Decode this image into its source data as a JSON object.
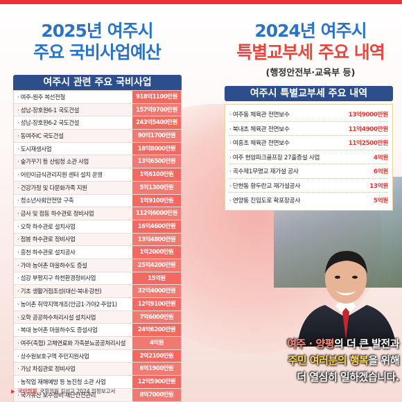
{
  "left_title": {
    "line1": "2025년 여주시",
    "line2": "주요 국비사업예산"
  },
  "right_title": {
    "line1": "2024년 여주시",
    "line2": "특별교부세 주요 내역",
    "sub": "(행정안전부·교육부 등)"
  },
  "left_table": {
    "header": "여주시 관련 주요 국비사업",
    "rows": [
      {
        "name": "여주-원주 복선전철",
        "amount": "918억1100만원"
      },
      {
        "name": "성남-장호원6-1 국도건설",
        "amount": "157억9700만원"
      },
      {
        "name": "성남-장호원6-2 국도건설",
        "amount": "243억5400만원"
      },
      {
        "name": "동여주IC 국도건설",
        "amount": "90억1700만원"
      },
      {
        "name": "도시재생사업",
        "amount": "18억8000만원"
      },
      {
        "name": "숲가꾸기 등 산림청 소관 사업",
        "amount": "13억6500만원"
      },
      {
        "name": "어린이급식관리지원 센터 설치 운영",
        "amount": "1억6100만원"
      },
      {
        "name": "건강가정 및 다문화가족 지원",
        "amount": "5억1300만원"
      },
      {
        "name": "청소년사회안전망 구축",
        "amount": "1억9100만원"
      },
      {
        "name": "금사 및 점동 하수관로 정비사업",
        "amount": "112억6000만원"
      },
      {
        "name": "오학 하수관로 설치사업",
        "amount": "16억4600만원"
      },
      {
        "name": "점봉 하수관로 정비사업",
        "amount": "13억4800만원"
      },
      {
        "name": "흥천 하수관로 설치공사",
        "amount": "1억2000만원"
      },
      {
        "name": "가야 농어촌 마을하수도 증설",
        "amount": "25억4200만원"
      },
      {
        "name": "섬강 부평지구 하천환경정비사업",
        "amount": "15억원"
      },
      {
        "name": "기초 생활거점조성(대신·북내·강천)",
        "amount": "32억4000만원"
      },
      {
        "name": "농어촌 취약지역개조(안금1·가야2·주암1)",
        "amount": "12억9100만원"
      },
      {
        "name": "오학 공공하수처리시설 설치사업",
        "amount": "7억6000만원"
      },
      {
        "name": "복대 농어촌 마을하수도 증설사업",
        "amount": "24억6200만원"
      },
      {
        "name": "여주(축협) 고체연료화 가축분뇨공공처리시설",
        "amount": "4억원"
      },
      {
        "name": "상수원보호구역 주민지원사업",
        "amount": "2억2100만원"
      },
      {
        "name": "가남 차집관로 정비사업",
        "amount": "6억1900만원"
      },
      {
        "name": "농작업 재해예방 등 농진청 소관 사업",
        "amount": "12억5900만원"
      },
      {
        "name": "국가유산 보수정비·재난안전관리",
        "amount": "8억7000만원"
      }
    ]
  },
  "right_table": {
    "header": "여주시 특별교부세 주요 내역",
    "rows": [
      {
        "name": "여주동 체육관 전면보수",
        "amount": "13억9000만원"
      },
      {
        "name": "북내초 체육관 전면보수",
        "amount": "11억4900만원"
      },
      {
        "name": "여흥초 체육관 전면보수",
        "amount": "11억2500만원"
      },
      {
        "name": "여주 현암파크골프장 27홀증설 사업",
        "amount": "4억원"
      },
      {
        "name": "곡수제1무명교 재가설 공사",
        "amount": "6억원"
      },
      {
        "name": "단현동 황두란교 재가설공사",
        "amount": "13억원"
      },
      {
        "name": "연양동 진입도로 확포장공사",
        "amount": "5억원"
      }
    ]
  },
  "slogan": {
    "line1_a": "여주 · 양평",
    "line1_b": "의 더 큰 발전과",
    "line2_a": "주민 여러분의 행복",
    "line2_b": "을 위해",
    "line3": "더 열심히 일하겠습니다."
  },
  "footer": {
    "party": "국민의힘",
    "text": "국회의원 김선교 2024 의정보고서"
  },
  "colors": {
    "accent_blue": "#2a73c5",
    "accent_red": "#e2483d",
    "header_navy": "#2c4e8a",
    "amount_bg": "#f06a62"
  }
}
